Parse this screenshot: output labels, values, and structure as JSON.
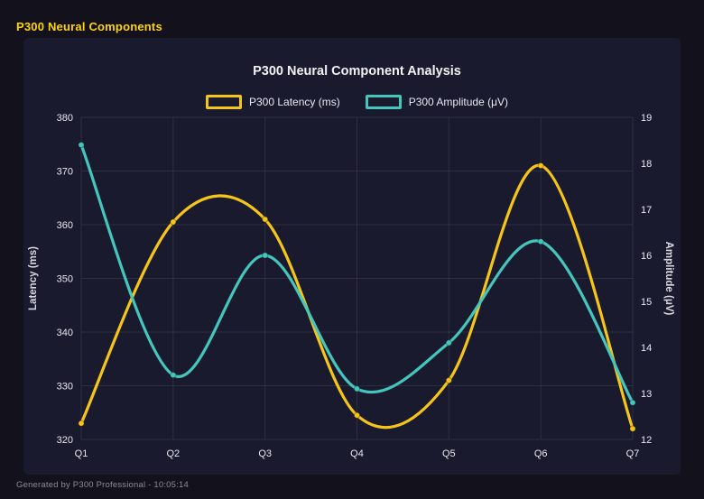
{
  "page": {
    "title": "P300 Neural Components",
    "footer": "Generated by P300 Professional - 10:05:14"
  },
  "colors": {
    "page_bg": "#13121c",
    "panel_bg": "#1a1a2e",
    "header_text": "#ffd400",
    "chart_title_text": "#f1f1f6",
    "legend_text": "#e9e9f0",
    "tick_text": "#e9e9f0",
    "axis_title_text": "#d9d9e2",
    "grid": "rgba(255,255,255,0.09)",
    "footer_text": "#8b8b9a",
    "latency_series": "#f5c518",
    "amplitude_series": "#45c6bc"
  },
  "chart_data": {
    "type": "line",
    "title": "P300 Neural Component Analysis",
    "categories": [
      "Q1",
      "Q2",
      "Q3",
      "Q4",
      "Q5",
      "Q6",
      "Q7"
    ],
    "series": [
      {
        "name": "P300 Latency (ms)",
        "axis": "left",
        "color": "#f5c518",
        "values": [
          323,
          360.5,
          361,
          324.5,
          331,
          371,
          322
        ]
      },
      {
        "name": "P300 Amplitude (μV)",
        "axis": "right",
        "color": "#45c6bc",
        "values": [
          18.4,
          13.4,
          16.0,
          13.1,
          14.1,
          16.3,
          12.8
        ]
      }
    ],
    "left_axis": {
      "label": "Latency (ms)",
      "min": 320,
      "max": 380,
      "ticks": [
        320,
        330,
        340,
        350,
        360,
        370,
        380
      ]
    },
    "right_axis": {
      "label": "Amplitude (μV)",
      "min": 12,
      "max": 19,
      "ticks": [
        12,
        13,
        14,
        15,
        16,
        17,
        18,
        19
      ]
    },
    "grid": true,
    "smooth": true,
    "legend_position": "top"
  }
}
